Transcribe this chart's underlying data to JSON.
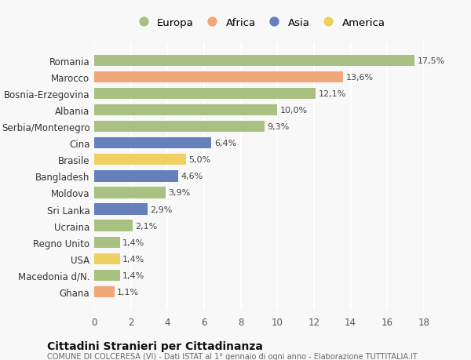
{
  "countries": [
    "Romania",
    "Marocco",
    "Bosnia-Erzegovina",
    "Albania",
    "Serbia/Montenegro",
    "Cina",
    "Brasile",
    "Bangladesh",
    "Moldova",
    "Sri Lanka",
    "Ucraina",
    "Regno Unito",
    "USA",
    "Macedonia d/N.",
    "Ghana"
  ],
  "values": [
    17.5,
    13.6,
    12.1,
    10.0,
    9.3,
    6.4,
    5.0,
    4.6,
    3.9,
    2.9,
    2.1,
    1.4,
    1.4,
    1.4,
    1.1
  ],
  "labels": [
    "17,5%",
    "13,6%",
    "12,1%",
    "10,0%",
    "9,3%",
    "6,4%",
    "5,0%",
    "4,6%",
    "3,9%",
    "2,9%",
    "2,1%",
    "1,4%",
    "1,4%",
    "1,4%",
    "1,1%"
  ],
  "continents": [
    "Europa",
    "Africa",
    "Europa",
    "Europa",
    "Europa",
    "Asia",
    "America",
    "Asia",
    "Europa",
    "Asia",
    "Europa",
    "Europa",
    "America",
    "Europa",
    "Africa"
  ],
  "continent_colors": {
    "Europa": "#a8c080",
    "Africa": "#f0a878",
    "Asia": "#6680bb",
    "America": "#f0d060"
  },
  "legend_order": [
    "Europa",
    "Africa",
    "Asia",
    "America"
  ],
  "title": "Cittadini Stranieri per Cittadinanza",
  "subtitle": "COMUNE DI COLCERESA (VI) - Dati ISTAT al 1° gennaio di ogni anno - Elaborazione TUTTITALIA.IT",
  "xlim": [
    0,
    18
  ],
  "xticks": [
    0,
    2,
    4,
    6,
    8,
    10,
    12,
    14,
    16,
    18
  ],
  "background_color": "#f8f8f8",
  "plot_bg_color": "#f8f8f8",
  "grid_color": "#ffffff",
  "bar_height": 0.68
}
